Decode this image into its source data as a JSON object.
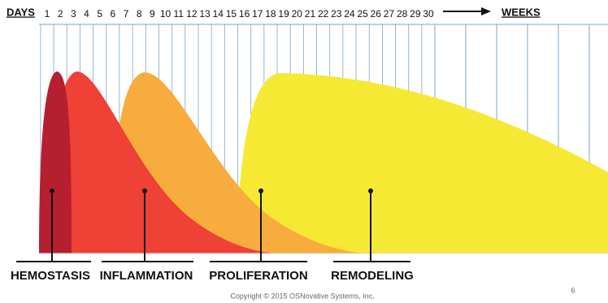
{
  "header": {
    "days_label": "DAYS",
    "days": [
      "1",
      "2",
      "3",
      "4",
      "5",
      "6",
      "7",
      "8",
      "9",
      "10",
      "11",
      "12",
      "13",
      "14",
      "15",
      "16",
      "17",
      "18",
      "19",
      "20",
      "21",
      "22",
      "23",
      "24",
      "25",
      "26",
      "27",
      "28",
      "29",
      "30"
    ],
    "weeks_label": "WEEKS"
  },
  "phases": [
    {
      "label": "HEMOSTASIS"
    },
    {
      "label": "INFLAMMATION"
    },
    {
      "label": "PROLIFERATION"
    },
    {
      "label": "REMODELING"
    }
  ],
  "footer": {
    "copyright": "Copyright © 2015 OSNovative Systems, Inc.",
    "page": "6"
  }
}
